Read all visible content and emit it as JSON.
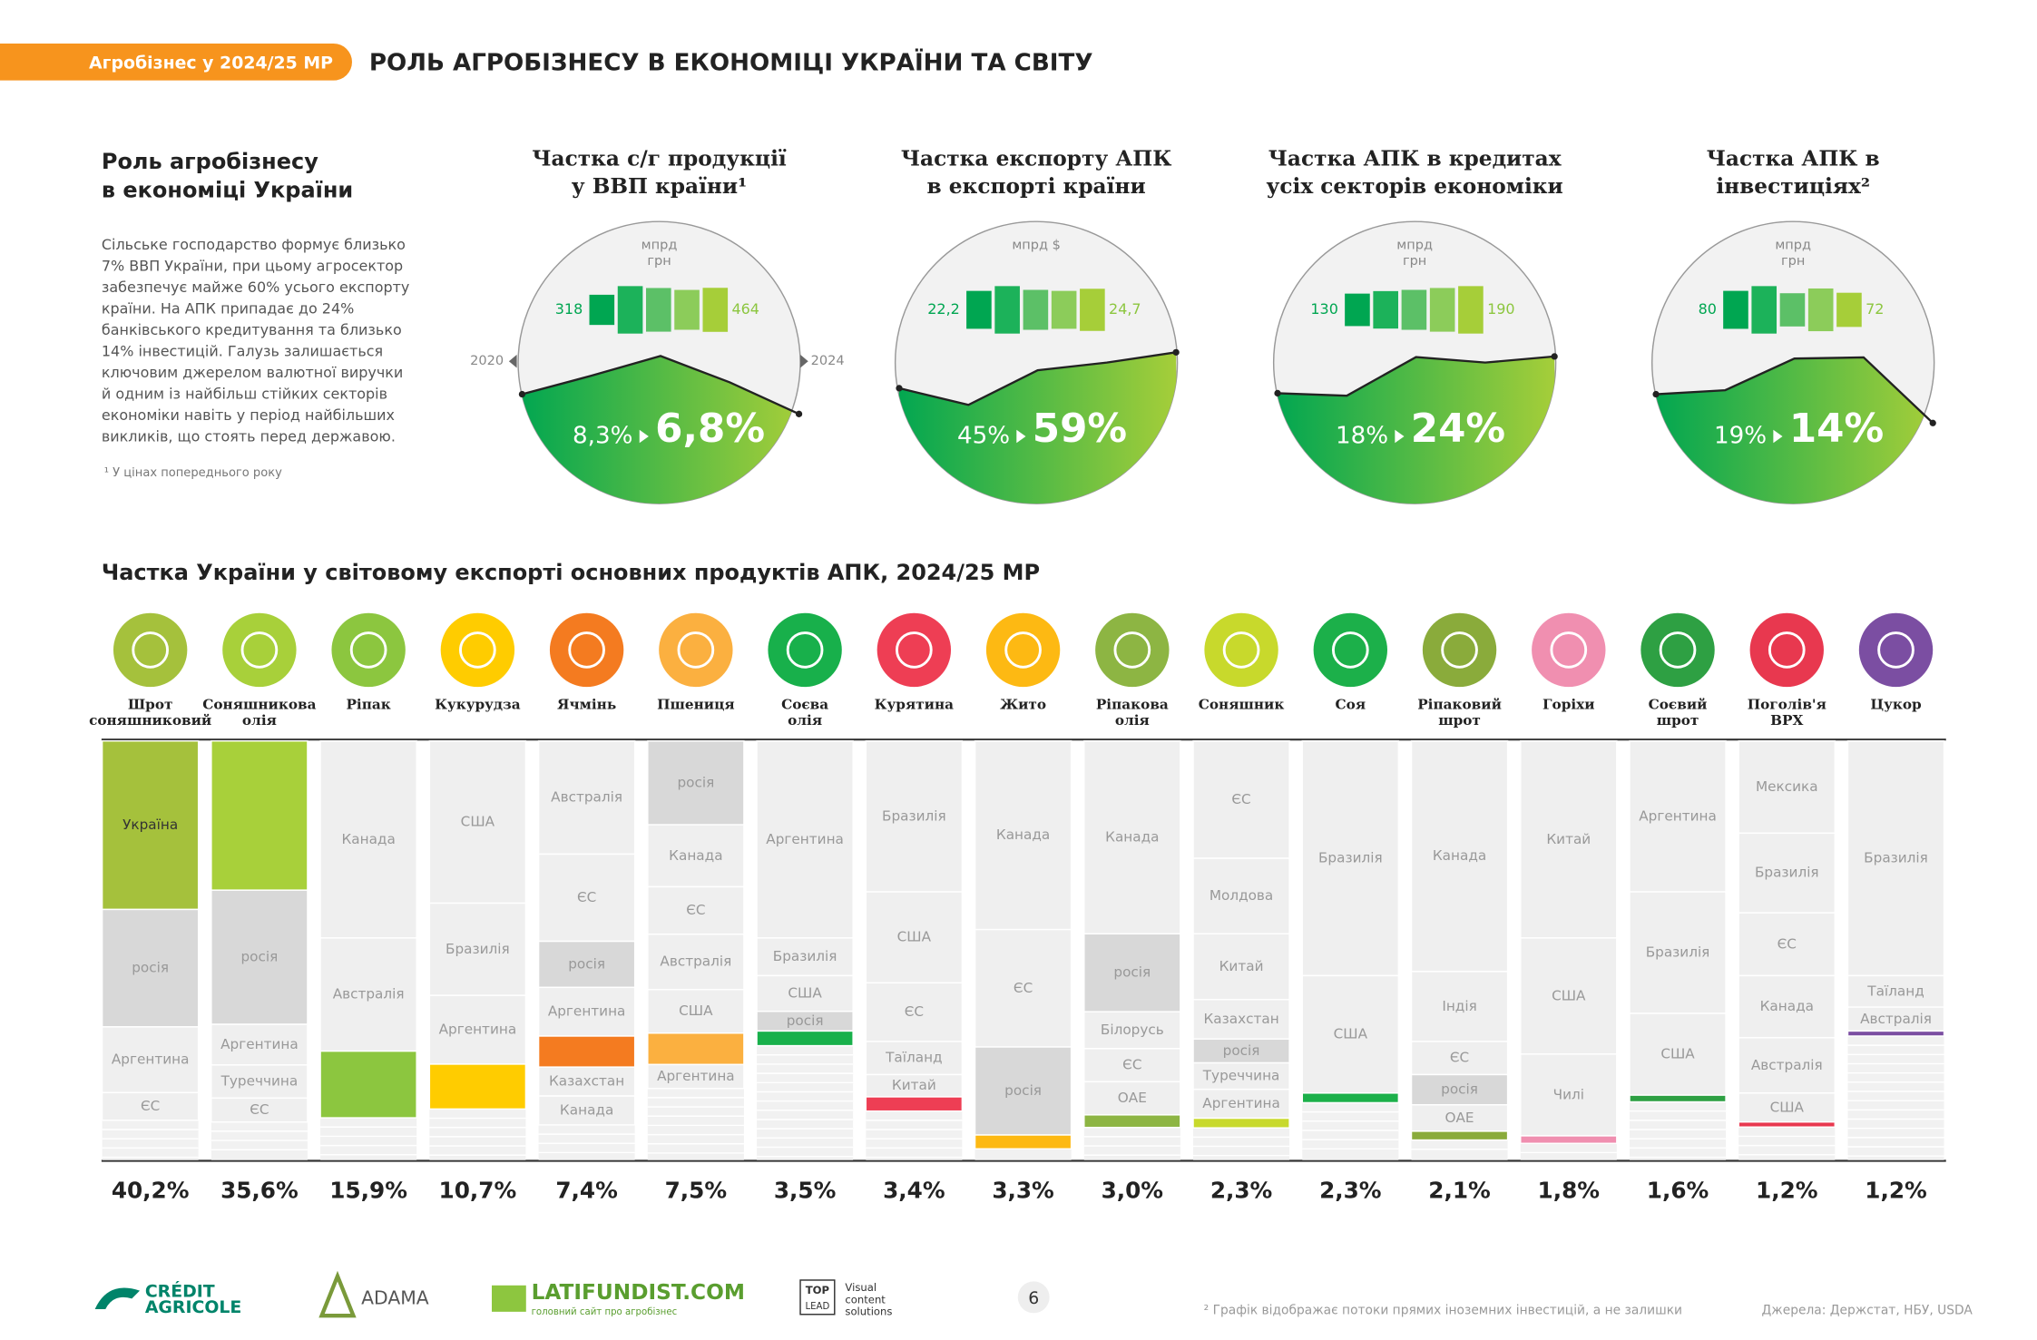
{
  "header": {
    "tag": "Агробізнес у 2024/25 МР",
    "title": "РОЛЬ АГРОБІЗНЕСУ В ЕКОНОМІЦІ УКРАЇНИ ТА СВІТУ"
  },
  "intro": {
    "title": [
      "Роль агробізнесу",
      "в економіці України"
    ],
    "text": [
      "Сільське господарство формує близько",
      "7% ВВП України, при цьому агросектор",
      "забезпечує майже 60% усього експорту",
      "країни. На АПК припадає до 24%",
      "банківського кредитування та близько",
      "14% інвестицій. Галузь залишається",
      "ключовим джерелом валютної виручки",
      "й одним із найбільш стійких секторів",
      "економіки навіть у період найбільших",
      "викликів, що стоять перед державою."
    ],
    "footnote": "¹ У цінах попереднього року"
  },
  "circles": [
    {
      "title": [
        "Частка с/г продукції",
        "у ВВП країни¹"
      ],
      "unit": [
        "мпрд",
        "грн"
      ],
      "bars": {
        "values": [
          318,
          500,
          460,
          420,
          464
        ],
        "value_labels": [
          "318",
          null,
          null,
          null,
          "464"
        ]
      },
      "trend": {
        "x": [
          "2020",
          null,
          null,
          null,
          "2024"
        ],
        "values": [
          8.3,
          9.7,
          11.2,
          9.2,
          6.8
        ],
        "value_labels": [
          "8,3%",
          null,
          null,
          null,
          "6,8%"
        ],
        "ylim": [
          0,
          21.4
        ]
      }
    },
    {
      "title": [
        "Частка експорту АПК",
        "в експорті країни"
      ],
      "unit": [
        "мпрд $"
      ],
      "bars": {
        "values": [
          22.2,
          27.8,
          23.4,
          22.2,
          24.7
        ],
        "value_labels": [
          "22,2",
          null,
          null,
          null,
          "24,7"
        ]
      },
      "trend": {
        "values": [
          45,
          38.5,
          52,
          55,
          59
        ],
        "value_labels": [
          "45%",
          null,
          null,
          null,
          "59%"
        ],
        "ylim": [
          0,
          110
        ]
      }
    },
    {
      "title": [
        "Частка АПК в кредитах",
        "усіх секторів економіки"
      ],
      "unit": [
        "мпрд",
        "грн"
      ],
      "bars": {
        "values": [
          130,
          150,
          160,
          175,
          190
        ],
        "value_labels": [
          "130",
          null,
          null,
          null,
          "190"
        ]
      },
      "trend": {
        "values": [
          18,
          17.6,
          23.9,
          23,
          24
        ],
        "value_labels": [
          "18%",
          null,
          null,
          null,
          "24%"
        ],
        "ylim": [
          0,
          46
        ]
      }
    },
    {
      "title": [
        "Частка АПК в",
        "інвестиціях²"
      ],
      "unit": [
        "мпрд",
        "грн"
      ],
      "bars": {
        "values": [
          80,
          100,
          70,
          90,
          72
        ],
        "value_labels": [
          "80",
          null,
          null,
          null,
          "72"
        ]
      },
      "trend": {
        "values": [
          19,
          19.7,
          25.2,
          25.4,
          14
        ],
        "value_labels": [
          "19%",
          null,
          null,
          null,
          "14%"
        ],
        "ylim": [
          0,
          49
        ]
      }
    }
  ],
  "exports": {
    "title": "Частка України у світовому експорті основних продуктів АПК, 2024/25 МР",
    "products": [
      {
        "name": [
          "Шрот",
          "соняшниковий"
        ],
        "color": "#a5c13c",
        "segments": [
          {
            "country": "Україна",
            "value": 40.2,
            "value_label": "40,2%"
          },
          {
            "country": "росія",
            "value": 28
          },
          {
            "country": "Аргентина",
            "value": 15.7
          },
          {
            "country": "ЄС",
            "value": 6.6
          }
        ]
      },
      {
        "name": [
          "Соняшникова",
          "олія"
        ],
        "color": "#a8d03a",
        "segments": [
          {
            "value": 35.6,
            "value_label": "35,6%"
          },
          {
            "country": "росія",
            "value": 32
          },
          {
            "country": "Аргентина",
            "value": 9.7
          },
          {
            "country": "Туреччина",
            "value": 7.9
          },
          {
            "country": "ЄС",
            "value": 5.7
          }
        ]
      },
      {
        "name": [
          "Ріпак"
        ],
        "color": "#8cc63f",
        "segments": [
          {
            "country": "Канада",
            "value": 47
          },
          {
            "country": "Австралія",
            "value": 27
          },
          {
            "value": 15.9,
            "value_label": "15,9%"
          }
        ]
      },
      {
        "name": [
          "Кукурудза"
        ],
        "color": "#ffcc00",
        "segments": [
          {
            "country": "США",
            "value": 38.7
          },
          {
            "country": "Бразилія",
            "value": 22
          },
          {
            "country": "Аргентина",
            "value": 16.4
          },
          {
            "value": 10.7,
            "value_label": "10,7%"
          }
        ]
      },
      {
        "name": [
          "Ячмінь"
        ],
        "color": "#f47b20",
        "segments": [
          {
            "country": "Австралія",
            "value": 27
          },
          {
            "country": "ЄС",
            "value": 20.8
          },
          {
            "country": "росія",
            "value": 11
          },
          {
            "country": "Аргентина",
            "value": 11.6
          },
          {
            "value": 7.4,
            "value_label": "7,4%"
          },
          {
            "country": "Казахстан",
            "value": 6.9
          },
          {
            "country": "Канада",
            "value": 6.9
          }
        ]
      },
      {
        "name": [
          "Пшениця"
        ],
        "color": "#fbb040",
        "segments": [
          {
            "country": "росія",
            "value": 20
          },
          {
            "country": "Канада",
            "value": 14.8
          },
          {
            "country": "ЄС",
            "value": 11.3
          },
          {
            "country": "Австралія",
            "value": 13.2
          },
          {
            "country": "США",
            "value": 10.4
          },
          {
            "value": 7.5,
            "value_label": "7,5%"
          },
          {
            "country": "Аргентина",
            "value": 5.7
          }
        ]
      },
      {
        "name": [
          "Соєва",
          "олія"
        ],
        "color": "#18b04b",
        "segments": [
          {
            "country": "Аргентина",
            "value": 47
          },
          {
            "country": "Бразилія",
            "value": 9
          },
          {
            "country": "США",
            "value": 8.5
          },
          {
            "country": "росія",
            "value": 4.7
          },
          {
            "value": 3.5,
            "value_label": "3,5%"
          }
        ]
      },
      {
        "name": [
          "Курятина"
        ],
        "color": "#ee3e54",
        "segments": [
          {
            "country": "Бразилія",
            "value": 36
          },
          {
            "country": "США",
            "value": 21.7
          },
          {
            "country": "ЄС",
            "value": 14
          },
          {
            "country": "Таїланд",
            "value": 7.9
          },
          {
            "country": "Китай",
            "value": 5.3
          },
          {
            "value": 3.4,
            "value_label": "3,4%"
          }
        ]
      },
      {
        "name": [
          "Жито"
        ],
        "color": "#fdb913",
        "segments": [
          {
            "country": "Канада",
            "value": 45
          },
          {
            "country": "ЄС",
            "value": 28
          },
          {
            "country": "росія",
            "value": 21
          },
          {
            "value": 3.3,
            "value_label": "3,3%"
          }
        ]
      },
      {
        "name": [
          "Ріпакова",
          "олія"
        ],
        "color": "#8db543",
        "segments": [
          {
            "country": "Канада",
            "value": 46
          },
          {
            "country": "росія",
            "value": 18.6
          },
          {
            "country": "Білорусь",
            "value": 8.8
          },
          {
            "country": "ЄС",
            "value": 7.9
          },
          {
            "country": "ОАЕ",
            "value": 7.9
          },
          {
            "value": 3.0,
            "value_label": "3,0%"
          }
        ]
      },
      {
        "name": [
          "Соняшник"
        ],
        "color": "#c8d92c",
        "segments": [
          {
            "country": "ЄС",
            "value": 28
          },
          {
            "country": "Молдова",
            "value": 18
          },
          {
            "country": "Китай",
            "value": 15.7
          },
          {
            "country": "Казахстан",
            "value": 9.4
          },
          {
            "country": "росія",
            "value": 5.7
          },
          {
            "country": "Туреччина",
            "value": 6.3
          },
          {
            "country": "Аргентина",
            "value": 6.9
          },
          {
            "value": 2.3,
            "value_label": "2,3%"
          }
        ]
      },
      {
        "name": [
          "Соя"
        ],
        "color": "#1cb04a",
        "segments": [
          {
            "country": "Бразилія",
            "value": 56
          },
          {
            "country": "США",
            "value": 28
          },
          {
            "value": 2.3,
            "value_label": "2,3%"
          }
        ]
      },
      {
        "name": [
          "Ріпаковий",
          "шрот"
        ],
        "color": "#8aab3b",
        "segments": [
          {
            "country": "Канада",
            "value": 55
          },
          {
            "country": "Індія",
            "value": 16.7
          },
          {
            "country": "ЄС",
            "value": 7.9
          },
          {
            "country": "росія",
            "value": 7.2
          },
          {
            "country": "ОАЕ",
            "value": 6.3
          },
          {
            "value": 2.1,
            "value_label": "2,1%"
          }
        ]
      },
      {
        "name": [
          "Горіхи"
        ],
        "color": "#f08fb0",
        "segments": [
          {
            "country": "Китай",
            "value": 47
          },
          {
            "country": "США",
            "value": 27.7
          },
          {
            "country": "Чилі",
            "value": 19.5
          },
          {
            "value": 1.8,
            "value_label": "1,8%"
          }
        ]
      },
      {
        "name": [
          "Соєвий",
          "шрот"
        ],
        "color": "#2ea043",
        "segments": [
          {
            "country": "Аргентина",
            "value": 36
          },
          {
            "country": "Бразилія",
            "value": 29
          },
          {
            "country": "США",
            "value": 19.5
          },
          {
            "value": 1.6,
            "value_label": "1,6%"
          }
        ]
      },
      {
        "name": [
          "Поголів'я",
          "ВРХ"
        ],
        "color": "#e8384f",
        "segments": [
          {
            "country": "Мексика",
            "value": 22
          },
          {
            "country": "Бразилія",
            "value": 19
          },
          {
            "country": "ЄС",
            "value": 15
          },
          {
            "country": "Канада",
            "value": 14.8
          },
          {
            "country": "Австралія",
            "value": 13.2
          },
          {
            "country": "США",
            "value": 6.9
          },
          {
            "value": 1.2,
            "value_label": "1,2%"
          }
        ]
      },
      {
        "name": [
          "Цукор"
        ],
        "color": "#7b4ea2",
        "segments": [
          {
            "country": "Бразилія",
            "value": 56
          },
          {
            "country": "Таїланд",
            "value": 7.5
          },
          {
            "country": "Австралія",
            "value": 5.7
          },
          {
            "value": 1.2,
            "value_label": "1,2%"
          }
        ]
      }
    ]
  },
  "footer": {
    "logos": [
      "CRÉDIT",
      "AGRICOLE",
      "ADAMA",
      "LATIFUNDIST.COM",
      "головний сайт про агробізнес",
      "TOP",
      "LEAD",
      "Visual",
      "content",
      "solutions"
    ],
    "page": "6",
    "note": "² Графік відображає потоки прямих іноземних інвестицій, а не залишки",
    "sources": "Джерела: Держстат, НБУ, USDA"
  }
}
